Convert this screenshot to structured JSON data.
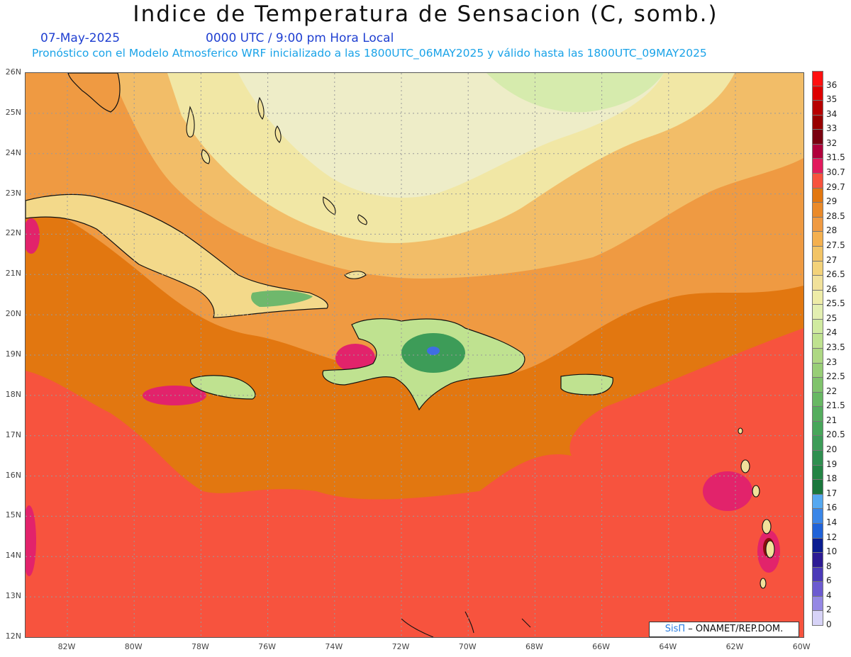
{
  "header": {
    "title": "Indice de Temperatura de Sensacion (C, somb.)",
    "date": "07-May-2025",
    "time": "0000 UTC / 9:00 pm Hora Local",
    "note": "Pronóstico con el Modelo Atmosferico WRF inicializado a las 1800UTC_06MAY2025 y válido hasta las  1800UTC_09MAY2025"
  },
  "map": {
    "lat_labels": [
      "26N",
      "25N",
      "24N",
      "23N",
      "22N",
      "21N",
      "20N",
      "19N",
      "18N",
      "17N",
      "16N",
      "15N",
      "14N",
      "13N",
      "12N"
    ],
    "lon_labels": [
      "82W",
      "80W",
      "78W",
      "76W",
      "74W",
      "72W",
      "70W",
      "68W",
      "66W",
      "64W",
      "62W",
      "60W"
    ],
    "colors": {
      "warm_sea": "#f7533e",
      "orange": "#e27710",
      "light_orange": "#ef9a42",
      "tan": "#f2bd68",
      "pale": "#f1e7a5",
      "cream": "#eeedc8",
      "pale_green": "#c9e89a",
      "green": "#3d9c58",
      "blue": "#3f6ee2",
      "magenta": "#e2236b",
      "maroon": "#8a0d0d",
      "coast": "#111111"
    },
    "credit": {
      "sis": "SisΠ",
      "org": " – ONAMET/REP.DOM."
    }
  },
  "legend": {
    "labels": [
      "36",
      "35",
      "34",
      "33",
      "32",
      "31.5",
      "30.7",
      "29.7",
      "29",
      "28.5",
      "28",
      "27.5",
      "27",
      "26.5",
      "26",
      "25.5",
      "25",
      "24",
      "23.5",
      "23",
      "22.5",
      "22",
      "21.5",
      "21",
      "20.5",
      "20",
      "19",
      "18",
      "17",
      "16",
      "14",
      "12",
      "10",
      "8",
      "6",
      "4",
      "2",
      "0"
    ],
    "colors": [
      "#ff1010",
      "#dd0000",
      "#b70000",
      "#980000",
      "#7a0010",
      "#b0003c",
      "#e21a5e",
      "#f7533e",
      "#e27710",
      "#ea8a2a",
      "#ef9a42",
      "#f4b04f",
      "#f2c466",
      "#f3d27a",
      "#f1e19a",
      "#eeeca8",
      "#e3efb1",
      "#d0eaa0",
      "#bfe290",
      "#aed883",
      "#98ce77",
      "#80c36c",
      "#68b864",
      "#55ad5e",
      "#47a65a",
      "#3d9c58",
      "#2f8f50",
      "#248445",
      "#1a773c",
      "#55a8f0",
      "#3a86e8",
      "#2062d8",
      "#0a1c90",
      "#2d1b94",
      "#4b3ab8",
      "#6c5ad0",
      "#9588e4",
      "#d7d3f7"
    ]
  }
}
